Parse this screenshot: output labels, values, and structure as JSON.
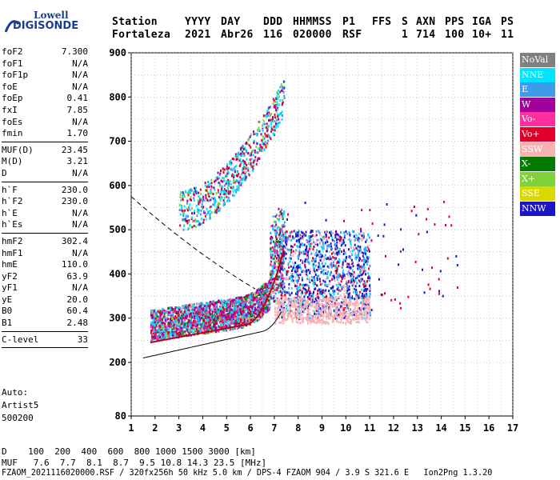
{
  "logo": {
    "line1": "Lowell",
    "line2": "DIGISONDE"
  },
  "header": {
    "labels": [
      "Station",
      "YYYY",
      "DAY",
      "DDD",
      "HHMMSS",
      "P1",
      "FFS",
      "S",
      "AXN",
      "PPS",
      "IGA",
      "PS"
    ],
    "values": [
      "Fortaleza",
      "2021",
      "Abr26",
      "116",
      "020000",
      "RSF",
      "",
      "1",
      "714",
      "100",
      "10+",
      "11"
    ]
  },
  "params_group1": [
    {
      "label": "foF2",
      "value": "7.300"
    },
    {
      "label": "foF1",
      "value": "N/A"
    },
    {
      "label": "foF1p",
      "value": "N/A"
    },
    {
      "label": "foE",
      "value": "N/A"
    },
    {
      "label": "foEp",
      "value": "0.41"
    },
    {
      "label": "fxI",
      "value": "7.85"
    },
    {
      "label": "foEs",
      "value": "N/A"
    },
    {
      "label": "fmin",
      "value": "1.70"
    }
  ],
  "params_group2": [
    {
      "label": "MUF(D)",
      "value": "23.45"
    },
    {
      "label": "M(D)",
      "value": "3.21"
    },
    {
      "label": "D",
      "value": "N/A"
    }
  ],
  "params_group3": [
    {
      "label": "h`F",
      "value": "230.0"
    },
    {
      "label": "h`F2",
      "value": "230.0"
    },
    {
      "label": "h`E",
      "value": "N/A"
    },
    {
      "label": "h`Es",
      "value": "N/A"
    }
  ],
  "params_group4": [
    {
      "label": "hmF2",
      "value": "302.4"
    },
    {
      "label": "hmF1",
      "value": "N/A"
    },
    {
      "label": "hmE",
      "value": "110.0"
    },
    {
      "label": "yF2",
      "value": "63.9"
    },
    {
      "label": "yF1",
      "value": "N/A"
    },
    {
      "label": "yE",
      "value": "20.0"
    },
    {
      "label": "B0",
      "value": "60.4"
    },
    {
      "label": "B1",
      "value": "2.48"
    }
  ],
  "params_group5": [
    {
      "label": "C-level",
      "value": "33"
    }
  ],
  "auto": {
    "label": "Auto:",
    "scaler": "Artist5",
    "version": "500200"
  },
  "axes": {
    "x_ticks": [
      "1",
      "2",
      "3",
      "4",
      "5",
      "6",
      "7",
      "8",
      "9",
      "10",
      "11",
      "12",
      "13",
      "14",
      "15",
      "16",
      "17"
    ],
    "y_ticks": [
      "80",
      "200",
      "300",
      "400",
      "500",
      "600",
      "700",
      "800",
      "900"
    ],
    "x_range": [
      1,
      17
    ],
    "y_range": [
      80,
      900
    ]
  },
  "legend": [
    {
      "label": "NoVal",
      "bg": "#808080",
      "fg": "#ffffff"
    },
    {
      "label": "NNE",
      "bg": "#00e5ff",
      "fg": "#ffffff"
    },
    {
      "label": "E",
      "bg": "#3d9be9",
      "fg": "#ffffff"
    },
    {
      "label": "W",
      "bg": "#a0009c",
      "fg": "#ffffff"
    },
    {
      "label": "Vo-",
      "bg": "#ff2fa0",
      "fg": "#ffffff"
    },
    {
      "label": "Vo+",
      "bg": "#e0002a",
      "fg": "#ffffff"
    },
    {
      "label": "SSW",
      "bg": "#f7b3b3",
      "fg": "#ffffff"
    },
    {
      "label": "X-",
      "bg": "#007a00",
      "fg": "#ffffff"
    },
    {
      "label": "X+",
      "bg": "#7fd23a",
      "fg": "#ffffff"
    },
    {
      "label": "SSE",
      "bg": "#d9d900",
      "fg": "#ffffff"
    },
    {
      "label": "NNW",
      "bg": "#1a16c8",
      "fg": "#ffffff"
    }
  ],
  "footer": {
    "d_line": "D    100  200  400  600  800 1000 1500 3000 [km]",
    "muf_line": "MUF   7.6  7.7  8.1  8.7  9.5 10.8 14.3 23.5 [MHz]",
    "file_line": "FZAOM_2021116020000.RSF / 320fx256h 50 kHz 5.0 km / DPS-4 FZAOM 904 / 3.9 S 321.6 E   Ion2Png 1.3.20"
  }
}
